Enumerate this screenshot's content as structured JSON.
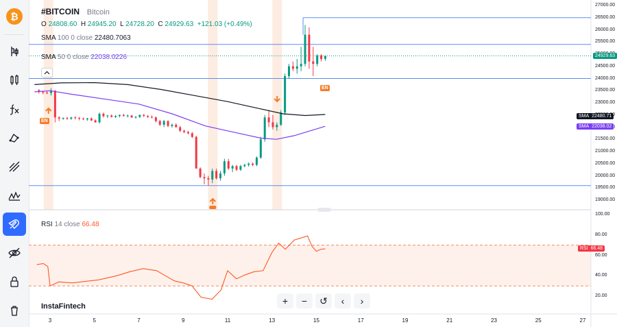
{
  "sidebar": {
    "brand": "₿",
    "items": [
      "candles",
      "indicators",
      "fx",
      "drawing",
      "lines",
      "patterns",
      "magnet",
      "visibility",
      "lock",
      "trash"
    ]
  },
  "legend": {
    "symbol": "#BITCOIN",
    "name": "Bitcoin",
    "o_label": "O",
    "o": "24808.60",
    "h_label": "H",
    "h": "24945.20",
    "l_label": "L",
    "l": "24728.20",
    "c_label": "C",
    "c": "24929.63",
    "change": "+121.03 (+0.49%)",
    "sma100": {
      "name": "SMA",
      "params": "100 0 close",
      "value": "22480.7063"
    },
    "sma50": {
      "name": "SMA",
      "params": "50 0 close",
      "value": "22038.0226"
    }
  },
  "price_axis": {
    "ticks": [
      "27000.00",
      "26500.00",
      "26000.00",
      "25500.00",
      "25000.00",
      "24500.00",
      "24000.00",
      "23500.00",
      "23000.00",
      "22500.00",
      "22000.00",
      "21500.00",
      "21000.00",
      "20500.00",
      "20000.00",
      "19500.00",
      "19000.00"
    ],
    "last_price": "24929.63",
    "sma100_tag": {
      "label": "SMA",
      "value": "22480.71"
    },
    "sma50_tag": {
      "label": "SMA",
      "value": "22038.02"
    }
  },
  "rsi": {
    "name": "RSI",
    "params": "14 close",
    "value": "66.48",
    "ticks": [
      "100.00",
      "80.00",
      "60.00",
      "40.00",
      "20.00"
    ],
    "tag_label": "RSI",
    "tag_value": "66.48"
  },
  "x_axis": {
    "ticks": [
      "3",
      "5",
      "7",
      "9",
      "11",
      "13",
      "15",
      "17",
      "19",
      "21",
      "23",
      "25",
      "27"
    ]
  },
  "events": {
    "en1": "EN",
    "en2": "EN"
  },
  "watermark": "InstaFintech",
  "toolbar": {
    "zoom_in": "+",
    "zoom_out": "−",
    "reset": "↺",
    "back": "‹",
    "forward": "›"
  },
  "colors": {
    "up": "#089981",
    "down": "#f23645",
    "sma100": "#131722",
    "sma50": "#7b3ff2",
    "rsi": "#ff5722",
    "accent": "#2f6bff",
    "hline": "#5b8def"
  }
}
